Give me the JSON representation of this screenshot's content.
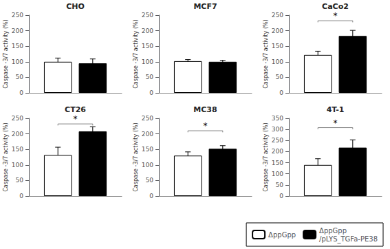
{
  "chart_data": [
    {
      "type": "bar",
      "title": "CHO",
      "ylabel": "Caspase -3/7 activity (%)",
      "categories": [
        null
      ],
      "series": [
        {
          "name": "ΔppGpp",
          "color": "white",
          "values": [
            100
          ],
          "errors": [
            12
          ]
        },
        {
          "name": "ΔppGpp\n/pLYS_TGFa-PE38",
          "color": "black",
          "values": [
            95
          ],
          "errors": [
            14
          ]
        }
      ],
      "ylim": [
        0,
        250
      ],
      "yticks": [
        0,
        50,
        100,
        150,
        200,
        250
      ],
      "grid": false,
      "tick_labels": "y",
      "legend": "lower right"
    },
    {
      "type": "bar",
      "title": "MCF7",
      "ylabel": "Caspase -3/7 activity (%)",
      "categories": [
        null
      ],
      "series": [
        {
          "name": "ΔppGpp",
          "color": "white",
          "values": [
            102
          ],
          "errors": [
            5
          ]
        },
        {
          "name": "ΔppGpp\n/pLYS_TGFa-PE38",
          "color": "black",
          "values": [
            100
          ],
          "errors": [
            5
          ]
        }
      ],
      "ylim": [
        0,
        250
      ],
      "yticks": [
        0,
        50,
        100,
        150,
        200,
        250
      ],
      "grid": false,
      "tick_labels": "y",
      "legend": "lower right"
    },
    {
      "type": "bar",
      "title": "CaCo2",
      "ylabel": "Caspase -3/7 activity (%)",
      "categories": [
        null
      ],
      "series": [
        {
          "name": "ΔppGpp",
          "color": "white",
          "values": [
            122
          ],
          "errors": [
            12
          ]
        },
        {
          "name": "ΔppGpp\n/pLYS_TGFa-PE38",
          "color": "black",
          "values": [
            183
          ],
          "errors": [
            18
          ]
        }
      ],
      "annotations": [
        {
          "text": "*",
          "y": 232
        }
      ],
      "ylim": [
        0,
        250
      ],
      "yticks": [
        0,
        50,
        100,
        150,
        200,
        250
      ],
      "grid": false,
      "tick_labels": "y",
      "legend": "lower right"
    },
    {
      "type": "bar",
      "title": "CT26",
      "ylabel": "Caspase -3/7 activity (%)",
      "categories": [
        null
      ],
      "series": [
        {
          "name": "ΔppGpp",
          "color": "white",
          "values": [
            132
          ],
          "errors": [
            25
          ]
        },
        {
          "name": "ΔppGpp\n/pLYS_TGFa-PE38",
          "color": "black",
          "values": [
            208
          ],
          "errors": [
            15
          ]
        }
      ],
      "annotations": [
        {
          "text": "*",
          "y": 232
        }
      ],
      "ylim": [
        0,
        250
      ],
      "yticks": [
        0,
        50,
        100,
        150,
        200,
        250
      ],
      "grid": false,
      "tick_labels": "y",
      "legend": "lower right"
    },
    {
      "type": "bar",
      "title": "MC38",
      "ylabel": "Caspase -3/7 activity (%)",
      "categories": [
        null
      ],
      "series": [
        {
          "name": "ΔppGpp",
          "color": "white",
          "values": [
            130
          ],
          "errors": [
            12
          ]
        },
        {
          "name": "ΔppGpp\n/pLYS_TGFa-PE38",
          "color": "black",
          "values": [
            152
          ],
          "errors": [
            10
          ]
        }
      ],
      "annotations": [
        {
          "text": "*",
          "y": 210
        }
      ],
      "ylim": [
        0,
        250
      ],
      "yticks": [
        0,
        50,
        100,
        150,
        200,
        250
      ],
      "grid": false,
      "tick_labels": "y",
      "legend": "lower right"
    },
    {
      "type": "bar",
      "title": "4T-1",
      "ylabel": "Caspase -3/7 activity (%)",
      "categories": [
        null
      ],
      "series": [
        {
          "name": "ΔppGpp",
          "color": "white",
          "values": [
            140
          ],
          "errors": [
            28
          ]
        },
        {
          "name": "ΔppGpp\n/pLYS_TGFa-PE38",
          "color": "black",
          "values": [
            218
          ],
          "errors": [
            35
          ]
        }
      ],
      "annotations": [
        {
          "text": "*",
          "y": 308
        }
      ],
      "ylim": [
        0,
        350
      ],
      "yticks": [
        0,
        50,
        100,
        150,
        200,
        250,
        300,
        350
      ],
      "grid": false,
      "tick_labels": "y",
      "legend": "lower right"
    }
  ]
}
